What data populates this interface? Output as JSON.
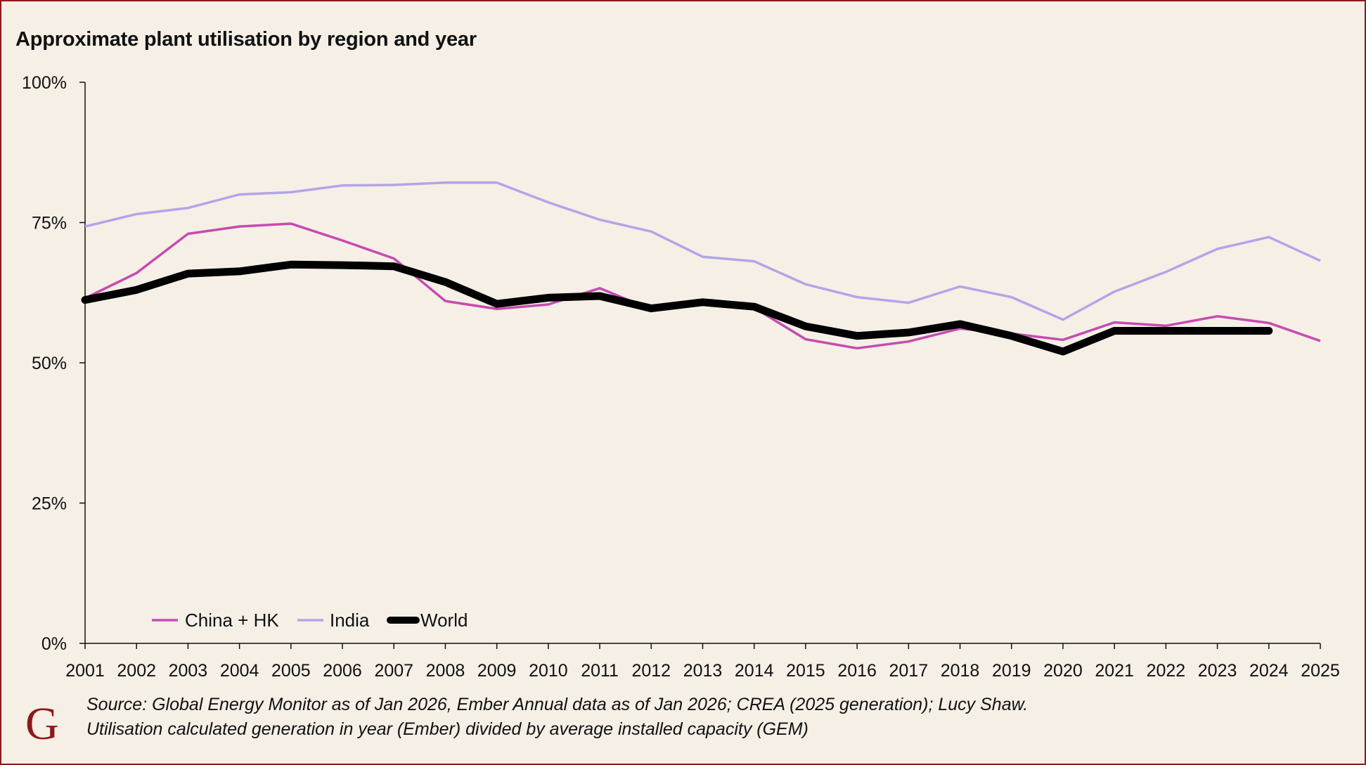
{
  "chart_data": {
    "type": "line",
    "title": "Approximate plant utilisation by region and year",
    "x": [
      "2001",
      "2002",
      "2003",
      "2004",
      "2005",
      "2006",
      "2007",
      "2008",
      "2009",
      "2010",
      "2011",
      "2012",
      "2013",
      "2014",
      "2015",
      "2016",
      "2017",
      "2018",
      "2019",
      "2020",
      "2021",
      "2022",
      "2023",
      "2024",
      "2025"
    ],
    "y_ticks": [
      "0%",
      "25%",
      "50%",
      "75%",
      "100%"
    ],
    "ylim": [
      0,
      100
    ],
    "grid": false,
    "legend_position": "bottom-left",
    "series": [
      {
        "name": "China + HK",
        "color": "#c64bb0",
        "values": [
          61.5,
          66,
          73,
          74.3,
          74.8,
          71.8,
          68.6,
          61,
          59.6,
          60.4,
          63.3,
          59.5,
          60.8,
          59.8,
          54.2,
          52.6,
          53.8,
          56.1,
          55.2,
          54.1,
          57.2,
          56.6,
          58.3,
          57.1,
          53.9
        ]
      },
      {
        "name": "India",
        "color": "#b4a4e8",
        "values": [
          74.3,
          76.5,
          77.6,
          80,
          80.4,
          81.6,
          81.7,
          82.1,
          82.1,
          78.6,
          75.5,
          73.4,
          68.9,
          68.1,
          64,
          61.7,
          60.7,
          63.6,
          61.7,
          57.7,
          62.7,
          66.2,
          70.3,
          72.4,
          68.2
        ]
      },
      {
        "name": "World",
        "color": "#000000",
        "values": [
          61.2,
          63,
          65.9,
          66.3,
          67.5,
          67.4,
          67.2,
          64.4,
          60.5,
          61.6,
          61.9,
          59.7,
          60.8,
          60,
          56.5,
          54.8,
          55.4,
          56.9,
          54.8,
          52,
          55.7,
          55.7,
          55.7,
          55.7,
          null
        ]
      }
    ],
    "source_lines": [
      "Source: Global Energy Monitor as of Jan 2026, Ember Annual data as of Jan 2026; CREA (2025 generation); Lucy Shaw.",
      "Utilisation calculated generation in year (Ember) divided by average installed capacity (GEM)"
    ],
    "logo_text": "G"
  }
}
